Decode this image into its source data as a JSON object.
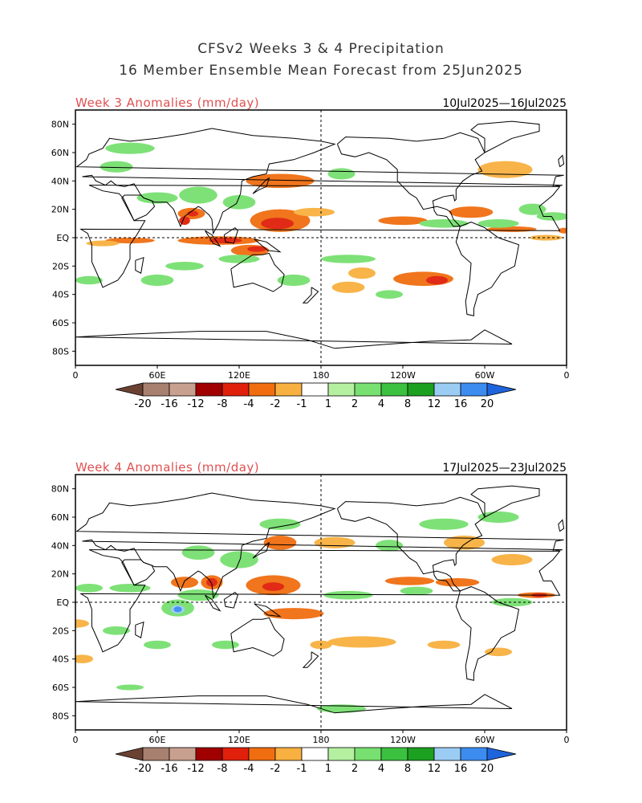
{
  "figure": {
    "title_line1": "CFSv2 Weeks 3 & 4 Precipitation",
    "title_line2": "16 Member Ensemble Mean Forecast from 25Jun2025"
  },
  "colors": {
    "title": "#333333",
    "panel_title": "#e05050",
    "frame": "#000000",
    "coast": "#000000"
  },
  "colorbar": {
    "labels": [
      "-20",
      "-16",
      "-12",
      "-8",
      "-4",
      "-2",
      "-1",
      "1",
      "2",
      "4",
      "8",
      "12",
      "16",
      "20"
    ],
    "colors": [
      "#6b4232",
      "#a88070",
      "#c8a090",
      "#a00000",
      "#e0200a",
      "#f06e10",
      "#f8b040",
      "#ffffff",
      "#b4f0a0",
      "#78e070",
      "#3cc040",
      "#1ca020",
      "#9bccf4",
      "#3c8cf0",
      "#1e64dc"
    ]
  },
  "chart_data": [
    {
      "type": "heatmap",
      "title": "Week 3 Anomalies (mm/day)",
      "date_range": "10Jul2025—16Jul2025",
      "x_ticks": [
        "0",
        "60E",
        "120E",
        "180",
        "120W",
        "60W",
        "0"
      ],
      "y_ticks": [
        "80N",
        "60N",
        "40N",
        "20N",
        "EQ",
        "20S",
        "40S",
        "60S",
        "80S"
      ],
      "xlim": [
        0,
        360
      ],
      "ylim": [
        -90,
        90
      ],
      "variable": "precipitation anomaly",
      "units": "mm/day",
      "reference_lines": [
        "equator",
        "180 meridian"
      ]
    },
    {
      "type": "heatmap",
      "title": "Week 4 Anomalies (mm/day)",
      "date_range": "17Jul2025—23Jul2025",
      "x_ticks": [
        "0",
        "60E",
        "120E",
        "180",
        "120W",
        "60W",
        "0"
      ],
      "y_ticks": [
        "80N",
        "60N",
        "40N",
        "20N",
        "EQ",
        "20S",
        "40S",
        "60S",
        "80S"
      ],
      "xlim": [
        0,
        360
      ],
      "ylim": [
        -90,
        90
      ],
      "variable": "precipitation anomaly",
      "units": "mm/day",
      "reference_lines": [
        "equator",
        "180 meridian"
      ]
    }
  ]
}
